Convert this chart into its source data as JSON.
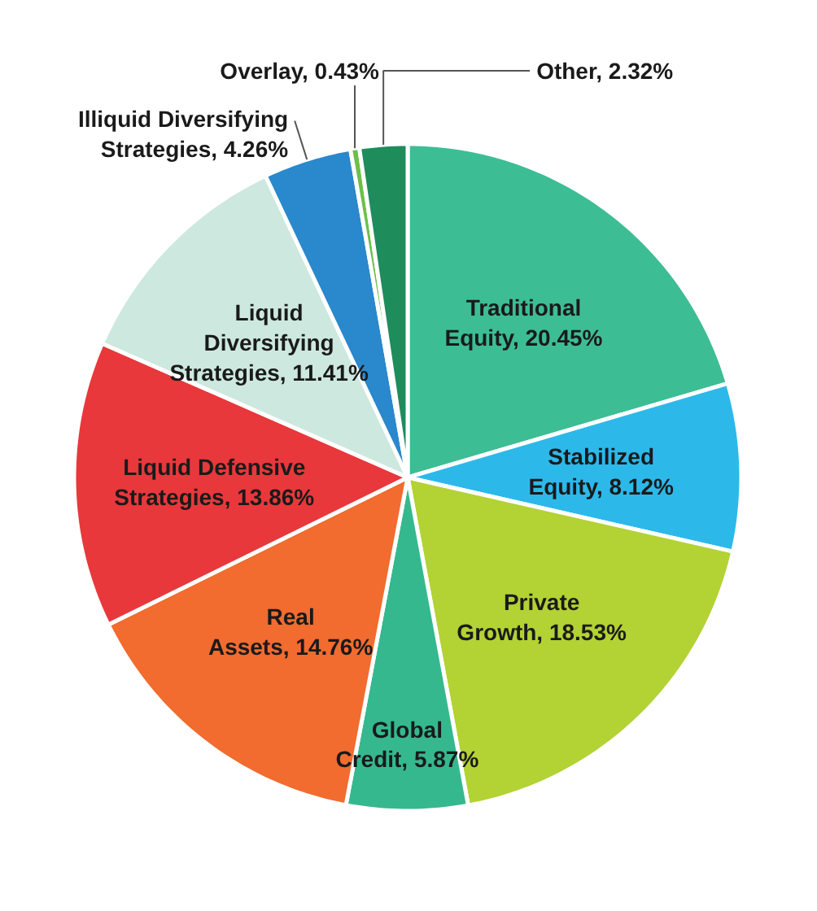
{
  "chart_data": {
    "type": "pie",
    "categories": [
      "Traditional Equity",
      "Stabilized Equity",
      "Private Growth",
      "Global Credit",
      "Real Assets",
      "Liquid Defensive Strategies",
      "Liquid Diversifying Strategies",
      "Illiquid Diversifying Strategies",
      "Overlay",
      "Other"
    ],
    "values": [
      20.45,
      8.12,
      18.53,
      5.87,
      14.76,
      13.86,
      11.41,
      4.26,
      0.43,
      2.32
    ],
    "value_labels": [
      "20.45%",
      "8.12%",
      "18.53%",
      "5.87%",
      "14.76%",
      "13.86%",
      "11.41%",
      "4.26%",
      "0.43%",
      "2.32%"
    ],
    "colors": [
      "#3dbd94",
      "#2cb9ea",
      "#b3d234",
      "#36b88e",
      "#f26b2f",
      "#e8383b",
      "#cde8df",
      "#2a88cc",
      "#6cc04a",
      "#1f8c5c"
    ]
  }
}
